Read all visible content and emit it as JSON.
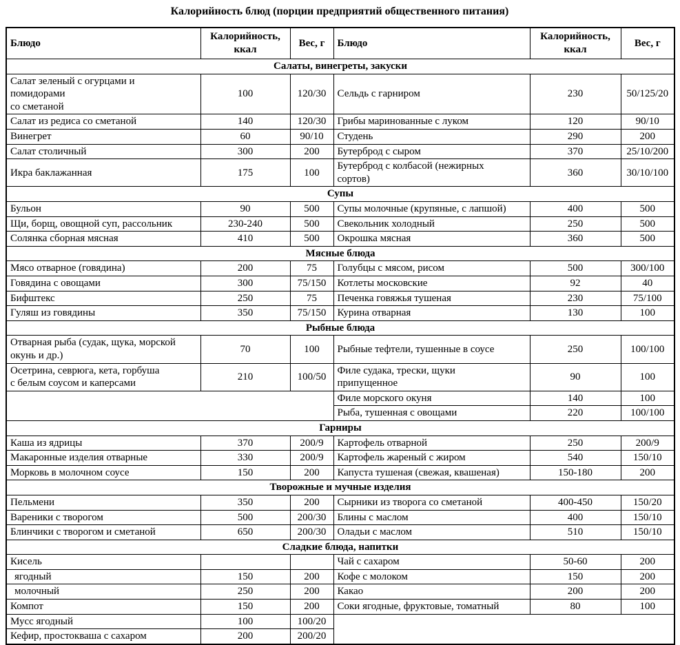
{
  "page_title": "Калорийность блюд (порции предприятий общественного питания)",
  "table": {
    "columns": [
      "Блюдо",
      "Калорийность, ккал",
      "Вес, г",
      "Блюдо",
      "Калорийность, ккал",
      "Вес, г"
    ],
    "sections": [
      {
        "title": "Салаты, винегреты, закуски",
        "rows": [
          {
            "cells": [
              {
                "text": "Салат зеленый с огурцами и\nпомидорами\nсо сметаной"
              },
              {
                "text": "100"
              },
              {
                "text": "120/30"
              },
              {
                "text": "Сельдь с гарниром"
              },
              {
                "text": "230"
              },
              {
                "text": "50/125/20"
              }
            ]
          },
          {
            "cells": [
              {
                "text": "Салат из редиса со сметаной"
              },
              {
                "text": "140"
              },
              {
                "text": "120/30"
              },
              {
                "text": "Грибы маринованные с луком"
              },
              {
                "text": "120"
              },
              {
                "text": "90/10"
              }
            ]
          },
          {
            "cells": [
              {
                "text": "Винегрет"
              },
              {
                "text": "60"
              },
              {
                "text": "90/10"
              },
              {
                "text": "Студень"
              },
              {
                "text": "290"
              },
              {
                "text": "200"
              }
            ]
          },
          {
            "cells": [
              {
                "text": "Салат столичный"
              },
              {
                "text": "300"
              },
              {
                "text": "200"
              },
              {
                "text": "Бутерброд с сыром"
              },
              {
                "text": "370"
              },
              {
                "text": "25/10/200"
              }
            ]
          },
          {
            "cells": [
              {
                "text": "Икра баклажанная"
              },
              {
                "text": "175"
              },
              {
                "text": "100"
              },
              {
                "text": "Бутерброд с колбасой (нежирных\nсортов)"
              },
              {
                "text": "360"
              },
              {
                "text": "30/10/100"
              }
            ]
          }
        ]
      },
      {
        "title": "Супы",
        "rows": [
          {
            "cells": [
              {
                "text": "Бульон"
              },
              {
                "text": "90"
              },
              {
                "text": "500"
              },
              {
                "text": "Супы молочные (крупяные, с лапшой)"
              },
              {
                "text": "400"
              },
              {
                "text": "500"
              }
            ]
          },
          {
            "cells": [
              {
                "text": "Щи, борщ, овощной суп, рассольник"
              },
              {
                "text": "230-240"
              },
              {
                "text": "500"
              },
              {
                "text": "Свекольник холодный"
              },
              {
                "text": "250"
              },
              {
                "text": "500"
              }
            ]
          },
          {
            "cells": [
              {
                "text": "Солянка сборная мясная"
              },
              {
                "text": "410"
              },
              {
                "text": "500"
              },
              {
                "text": "Окрошка мясная"
              },
              {
                "text": "360"
              },
              {
                "text": "500"
              }
            ]
          }
        ]
      },
      {
        "title": "Мясные блюда",
        "rows": [
          {
            "cells": [
              {
                "text": "Мясо отварное (говядина)"
              },
              {
                "text": "200"
              },
              {
                "text": "75"
              },
              {
                "text": "Голубцы с мясом, рисом"
              },
              {
                "text": "500"
              },
              {
                "text": "300/100"
              }
            ]
          },
          {
            "cells": [
              {
                "text": "Говядина с овощами"
              },
              {
                "text": "300"
              },
              {
                "text": "75/150"
              },
              {
                "text": "Котлеты московские"
              },
              {
                "text": "92"
              },
              {
                "text": "40"
              }
            ]
          },
          {
            "cells": [
              {
                "text": "Бифштекс"
              },
              {
                "text": "250"
              },
              {
                "text": "75"
              },
              {
                "text": "Печенка говяжья тушеная"
              },
              {
                "text": "230"
              },
              {
                "text": "75/100"
              }
            ]
          },
          {
            "cells": [
              {
                "text": "Гуляш из говядины"
              },
              {
                "text": "350"
              },
              {
                "text": "75/150"
              },
              {
                "text": "Курина отварная"
              },
              {
                "text": "130"
              },
              {
                "text": "100"
              }
            ]
          }
        ]
      },
      {
        "title": "Рыбные блюда",
        "rows": [
          {
            "cells": [
              {
                "text": "Отварная рыба (судак, щука, морской\nокунь и др.)"
              },
              {
                "text": "70"
              },
              {
                "text": "100"
              },
              {
                "text": "Рыбные тефтели, тушенные в соусе"
              },
              {
                "text": "250"
              },
              {
                "text": "100/100"
              }
            ]
          },
          {
            "cells": [
              {
                "text": "Осетрина, севрюга, кета, горбуша\nс белым соусом и каперсами"
              },
              {
                "text": "210"
              },
              {
                "text": "100/50"
              },
              {
                "text": "Филе судака, трески, щуки\nприпущенное"
              },
              {
                "text": "90"
              },
              {
                "text": "100"
              }
            ]
          },
          {
            "cells": [
              {
                "text": "",
                "colspan": 3,
                "rowspan": 2,
                "blank": true
              },
              {
                "text": "Филе морского окуня"
              },
              {
                "text": "140"
              },
              {
                "text": "100"
              }
            ]
          },
          {
            "cells": [
              {
                "text": "Рыба, тушенная с овощами"
              },
              {
                "text": "220"
              },
              {
                "text": "100/100"
              }
            ]
          }
        ]
      },
      {
        "title": "Гарниры",
        "rows": [
          {
            "cells": [
              {
                "text": "Каша из ядрицы"
              },
              {
                "text": "370"
              },
              {
                "text": "200/9"
              },
              {
                "text": "Картофель отварной"
              },
              {
                "text": "250"
              },
              {
                "text": "200/9"
              }
            ]
          },
          {
            "cells": [
              {
                "text": "Макаронные изделия отварные"
              },
              {
                "text": "330"
              },
              {
                "text": "200/9"
              },
              {
                "text": "Картофель жареный с жиром"
              },
              {
                "text": "540"
              },
              {
                "text": "150/10"
              }
            ]
          },
          {
            "cells": [
              {
                "text": "Морковь в молочном соусе"
              },
              {
                "text": "150"
              },
              {
                "text": "200"
              },
              {
                "text": "Капуста тушеная (свежая, квашеная)"
              },
              {
                "text": "150-180"
              },
              {
                "text": "200"
              }
            ]
          }
        ]
      },
      {
        "title": "Творожные и мучные изделия",
        "rows": [
          {
            "cells": [
              {
                "text": "Пельмени"
              },
              {
                "text": "350"
              },
              {
                "text": "200"
              },
              {
                "text": "Сырники из творога со сметаной"
              },
              {
                "text": "400-450"
              },
              {
                "text": "150/20"
              }
            ]
          },
          {
            "cells": [
              {
                "text": "Вареники с творогом"
              },
              {
                "text": "500"
              },
              {
                "text": "200/30"
              },
              {
                "text": "Блины с маслом"
              },
              {
                "text": "400"
              },
              {
                "text": "150/10"
              }
            ]
          },
          {
            "cells": [
              {
                "text": "Блинчики с творогом и сметаной"
              },
              {
                "text": "650"
              },
              {
                "text": "200/30"
              },
              {
                "text": "Оладьи с маслом"
              },
              {
                "text": "510"
              },
              {
                "text": "150/10"
              }
            ]
          }
        ]
      },
      {
        "title": "Сладкие блюда, напитки",
        "rows": [
          {
            "cells": [
              {
                "text": "Кисель"
              },
              {
                "text": ""
              },
              {
                "text": ""
              },
              {
                "text": "Чай с сахаром"
              },
              {
                "text": "50-60"
              },
              {
                "text": "200"
              }
            ]
          },
          {
            "cells": [
              {
                "text": "ягодный",
                "indent": true
              },
              {
                "text": "150"
              },
              {
                "text": "200"
              },
              {
                "text": "Кофе с молоком"
              },
              {
                "text": "150"
              },
              {
                "text": "200"
              }
            ]
          },
          {
            "cells": [
              {
                "text": "молочный",
                "indent": true
              },
              {
                "text": "250"
              },
              {
                "text": "200"
              },
              {
                "text": "Какао"
              },
              {
                "text": "200"
              },
              {
                "text": "200"
              }
            ]
          },
          {
            "cells": [
              {
                "text": "Компот"
              },
              {
                "text": "150"
              },
              {
                "text": "200"
              },
              {
                "text": "Соки ягодные, фруктовые, томатный"
              },
              {
                "text": "80"
              },
              {
                "text": "100"
              }
            ]
          },
          {
            "cells": [
              {
                "text": "Мусс ягодный"
              },
              {
                "text": "100"
              },
              {
                "text": "100/20"
              },
              {
                "text": "",
                "colspan": 3,
                "rowspan": 2,
                "blank": true
              }
            ]
          },
          {
            "cells": [
              {
                "text": "Кефир, простокваша с сахаром"
              },
              {
                "text": "200"
              },
              {
                "text": "200/20"
              }
            ]
          }
        ]
      }
    ]
  }
}
